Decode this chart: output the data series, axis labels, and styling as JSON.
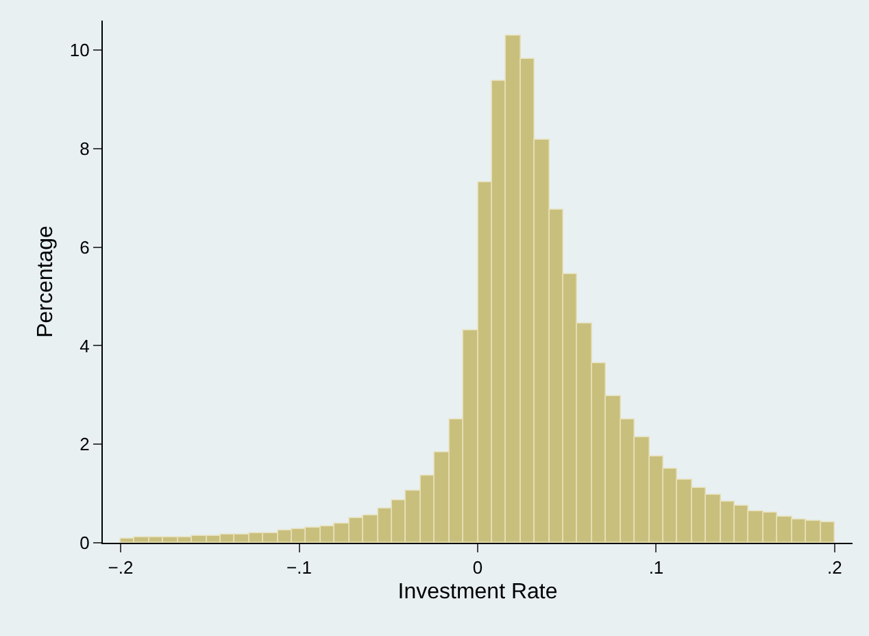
{
  "chart_data": {
    "type": "histogram",
    "xlabel": "Investment Rate",
    "ylabel": "Percentage",
    "bins": [
      -0.2,
      -0.192,
      -0.184,
      -0.176,
      -0.168,
      -0.16,
      -0.152,
      -0.144,
      -0.136,
      -0.128,
      -0.12,
      -0.112,
      -0.104,
      -0.096,
      -0.088,
      -0.08,
      -0.072,
      -0.064,
      -0.056,
      -0.048,
      -0.04,
      -0.032,
      -0.024,
      -0.016,
      -0.008,
      0,
      0.008,
      0.016,
      0.024,
      0.032,
      0.04,
      0.048,
      0.056,
      0.064,
      0.072,
      0.08,
      0.088,
      0.096,
      0.104,
      0.112,
      0.12,
      0.128,
      0.136,
      0.144,
      0.152,
      0.16,
      0.168,
      0.176,
      0.184,
      0.192,
      0.2
    ],
    "values": [
      0.09,
      0.1,
      0.1,
      0.11,
      0.12,
      0.13,
      0.15,
      0.16,
      0.16,
      0.2,
      0.19,
      0.25,
      0.28,
      0.31,
      0.34,
      0.38,
      0.49,
      0.57,
      0.69,
      0.85,
      1.07,
      1.36,
      1.84,
      2.5,
      4.32,
      7.32,
      9.37,
      10.3,
      9.82,
      8.19,
      6.76,
      5.44,
      4.45,
      3.64,
      2.97,
      2.51,
      2.13,
      1.75,
      1.51,
      1.28,
      1.12,
      0.97,
      0.83,
      0.74,
      0.65,
      0.6,
      0.54,
      0.48,
      0.44,
      0.41
    ],
    "color": "#c9bf7d",
    "xlim": [
      -0.21,
      0.21
    ],
    "ylim": [
      0,
      10.6
    ],
    "xticks": [
      {
        "value": -0.2,
        "label": "−.2"
      },
      {
        "value": -0.1,
        "label": "−.1"
      },
      0,
      {
        "value": 0.1,
        "label": ".1"
      },
      {
        "value": 0.2,
        "label": ".2"
      }
    ],
    "yticks": [
      0,
      2,
      4,
      6,
      8,
      10
    ],
    "grid": false
  }
}
